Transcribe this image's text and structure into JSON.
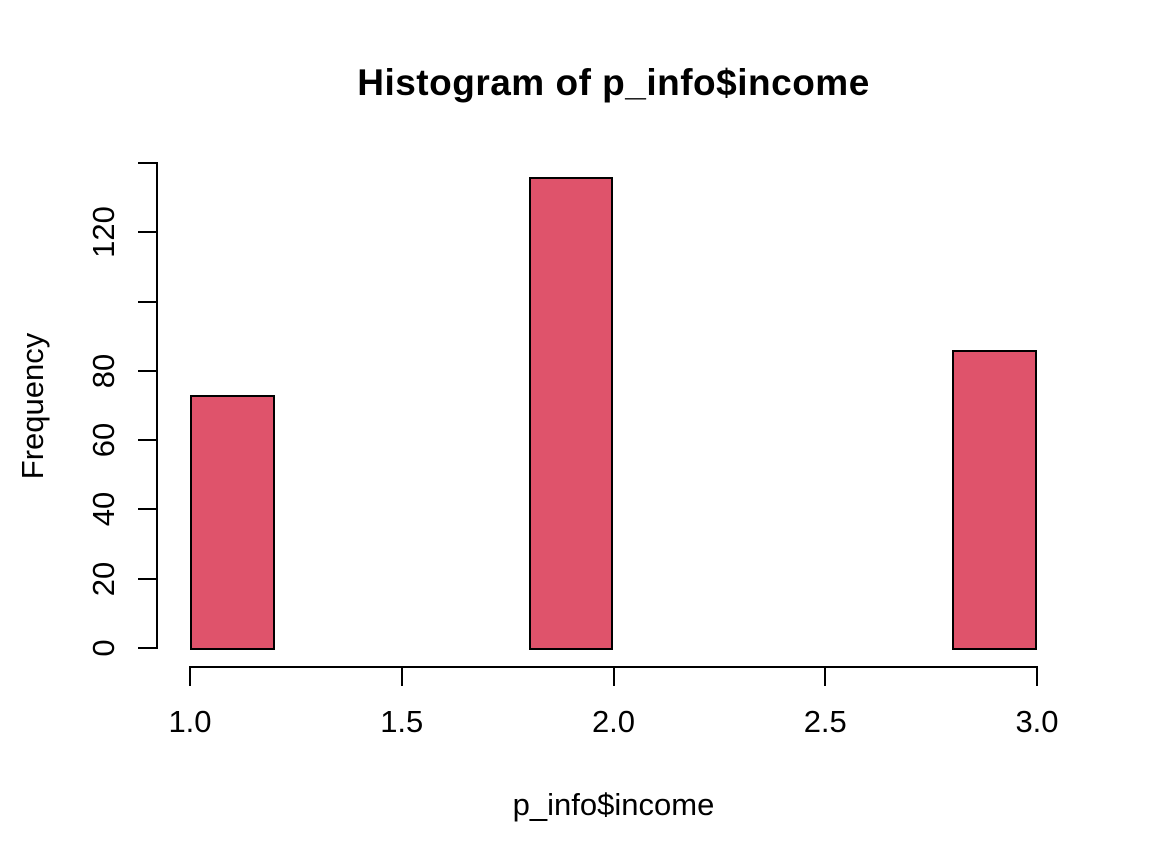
{
  "chart_data": {
    "type": "bar",
    "subtype": "histogram",
    "title": "Histogram of p_info$income",
    "xlabel": "p_info$income",
    "ylabel": "Frequency",
    "bins": [
      {
        "x_start": 1.0,
        "x_end": 1.2,
        "frequency": 73
      },
      {
        "x_start": 1.8,
        "x_end": 2.0,
        "frequency": 136
      },
      {
        "x_start": 2.8,
        "x_end": 3.0,
        "frequency": 86
      }
    ],
    "xlim": [
      1.0,
      3.0
    ],
    "ylim": [
      0,
      140
    ],
    "x_ticks": [
      1.0,
      1.5,
      2.0,
      2.5,
      3.0
    ],
    "x_tick_labels": [
      "1.0",
      "1.5",
      "2.0",
      "2.5",
      "3.0"
    ],
    "y_ticks": [
      0,
      20,
      40,
      60,
      80,
      100,
      120,
      140
    ],
    "y_tick_labels": [
      "0",
      "20",
      "40",
      "60",
      "80",
      "",
      "120",
      ""
    ],
    "grid": false,
    "legend": null,
    "bar_color": "#DF536B",
    "bar_border_color": "#000000",
    "axis_color": "#000000",
    "background_color": "#ffffff"
  }
}
